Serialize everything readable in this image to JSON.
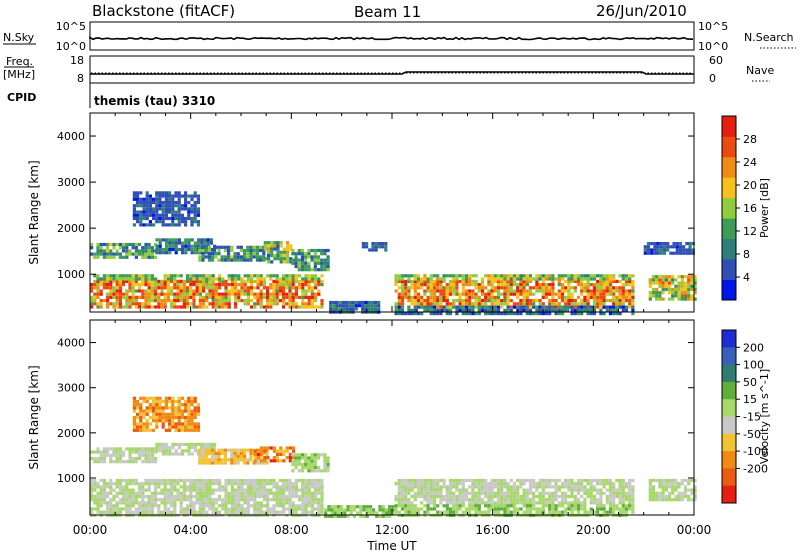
{
  "header": {
    "station": "Blackstone (fitACF)",
    "beam": "Beam 11",
    "date": "26/Jun/2010"
  },
  "panels": {
    "nsky": {
      "label": "N.Sky",
      "ticks": [
        "10^5",
        "10^0"
      ]
    },
    "nsearch": {
      "label": "N.Search",
      "ticks": [
        "10^5",
        "10^0"
      ]
    },
    "freq": {
      "label_top": "Freq.",
      "label_bottom": "[MHz]",
      "ticks": [
        "18",
        "8"
      ]
    },
    "nave": {
      "label": "Nave",
      "ticks": [
        "60",
        "0"
      ]
    },
    "cpid": {
      "label": "CPID",
      "value": "themis (tau) 3310"
    }
  },
  "colors": {
    "power": [
      "#0016e6",
      "#2f4eb6",
      "#2e7f7a",
      "#3e9b58",
      "#8fcd3c",
      "#f5c21b",
      "#f08c14",
      "#eb4b10",
      "#e61e10"
    ],
    "velocity": [
      "#1f2bd4",
      "#3a5fb8",
      "#2f7d6e",
      "#5fae3c",
      "#a7d86a",
      "#c8c8c8",
      "#f2c233",
      "#f08a12",
      "#eb5a12",
      "#e42010"
    ]
  },
  "chart_data": [
    {
      "type": "heatmap",
      "name": "power",
      "xlabel": "Time UT",
      "ylabel": "Slant Range [km]",
      "x_ticks": [
        "00:00",
        "04:00",
        "08:00",
        "12:00",
        "16:00",
        "20:00",
        "00:00"
      ],
      "xlim_hours": [
        0,
        24
      ],
      "y_ticks": [
        1000,
        2000,
        3000,
        4000
      ],
      "ylim_km": [
        180,
        4500
      ],
      "colorbar": {
        "label": "Power [dB]",
        "ticks": [
          4,
          8,
          12,
          16,
          20,
          24,
          28
        ],
        "range": [
          0,
          32
        ]
      },
      "regions": [
        {
          "t0": 0.0,
          "t1": 9.2,
          "r0": 280,
          "r1": 880,
          "v0": 14,
          "v1": 31
        },
        {
          "t0": 0.0,
          "t1": 9.2,
          "r0": 880,
          "r1": 1000,
          "v0": 10,
          "v1": 20
        },
        {
          "t0": 0.0,
          "t1": 2.6,
          "r0": 1350,
          "r1": 1680,
          "v0": 4,
          "v1": 18
        },
        {
          "t0": 2.6,
          "t1": 5.0,
          "r0": 1500,
          "r1": 1780,
          "v0": 3,
          "v1": 14
        },
        {
          "t0": 4.3,
          "t1": 6.9,
          "r0": 1300,
          "r1": 1620,
          "v0": 4,
          "v1": 18
        },
        {
          "t0": 6.9,
          "t1": 8.0,
          "r0": 1250,
          "r1": 1720,
          "v0": 6,
          "v1": 24
        },
        {
          "t0": 8.0,
          "t1": 9.5,
          "r0": 1100,
          "r1": 1550,
          "v0": 4,
          "v1": 16
        },
        {
          "t0": 9.5,
          "t1": 11.5,
          "r0": 180,
          "r1": 420,
          "v0": 3,
          "v1": 12
        },
        {
          "t0": 10.8,
          "t1": 11.8,
          "r0": 1550,
          "r1": 1700,
          "v0": 3,
          "v1": 8
        },
        {
          "t0": 12.1,
          "t1": 21.6,
          "r0": 320,
          "r1": 880,
          "v0": 14,
          "v1": 31
        },
        {
          "t0": 12.1,
          "t1": 21.6,
          "r0": 880,
          "r1": 1000,
          "v0": 10,
          "v1": 22
        },
        {
          "t0": 12.1,
          "t1": 21.6,
          "r0": 180,
          "r1": 320,
          "v0": 3,
          "v1": 12
        },
        {
          "t0": 22.2,
          "t1": 24.0,
          "r0": 480,
          "r1": 980,
          "v0": 10,
          "v1": 26
        },
        {
          "t0": 22.0,
          "t1": 24.0,
          "r0": 1450,
          "r1": 1700,
          "v0": 3,
          "v1": 10
        },
        {
          "t0": 1.7,
          "t1": 4.3,
          "r0": 2050,
          "r1": 2800,
          "v0": 3,
          "v1": 8
        }
      ]
    },
    {
      "type": "heatmap",
      "name": "velocity",
      "xlabel": "Time UT",
      "ylabel": "Slant Range [km]",
      "x_ticks": [
        "00:00",
        "04:00",
        "08:00",
        "12:00",
        "16:00",
        "20:00",
        "00:00"
      ],
      "xlim_hours": [
        0,
        24
      ],
      "y_ticks": [
        1000,
        2000,
        3000,
        4000
      ],
      "ylim_km": [
        180,
        4500
      ],
      "colorbar": {
        "label": "Velocity [m s^-1]",
        "ticks": [
          200,
          100,
          50,
          15,
          -15,
          -50,
          -100,
          -200
        ],
        "range": [
          -250,
          250
        ]
      },
      "regions": [
        {
          "t0": 0.0,
          "t1": 9.2,
          "r0": 420,
          "r1": 980,
          "v0": -10,
          "v1": 10
        },
        {
          "t0": 0.0,
          "t1": 9.2,
          "r0": 180,
          "r1": 420,
          "v0": -40,
          "v1": 40
        },
        {
          "t0": 0.0,
          "t1": 2.6,
          "r0": 1350,
          "r1": 1680,
          "v0": -10,
          "v1": 10
        },
        {
          "t0": 2.6,
          "t1": 5.0,
          "r0": 1500,
          "r1": 1780,
          "v0": -20,
          "v1": 15
        },
        {
          "t0": 4.3,
          "t1": 7.0,
          "r0": 1350,
          "r1": 1650,
          "v0": -120,
          "v1": -40
        },
        {
          "t0": 6.5,
          "t1": 8.1,
          "r0": 1350,
          "r1": 1700,
          "v0": -220,
          "v1": -60
        },
        {
          "t0": 8.0,
          "t1": 9.4,
          "r0": 1150,
          "r1": 1550,
          "v0": -15,
          "v1": 60
        },
        {
          "t0": 9.3,
          "t1": 12.0,
          "r0": 180,
          "r1": 400,
          "v0": 20,
          "v1": 80
        },
        {
          "t0": 12.1,
          "t1": 21.6,
          "r0": 420,
          "r1": 980,
          "v0": -10,
          "v1": 10
        },
        {
          "t0": 12.1,
          "t1": 21.6,
          "r0": 180,
          "r1": 420,
          "v0": 10,
          "v1": 70
        },
        {
          "t0": 22.2,
          "t1": 24.0,
          "r0": 500,
          "r1": 980,
          "v0": -10,
          "v1": 10
        },
        {
          "t0": 1.7,
          "t1": 4.3,
          "r0": 2050,
          "r1": 2800,
          "v0": -180,
          "v1": -60
        }
      ]
    }
  ]
}
